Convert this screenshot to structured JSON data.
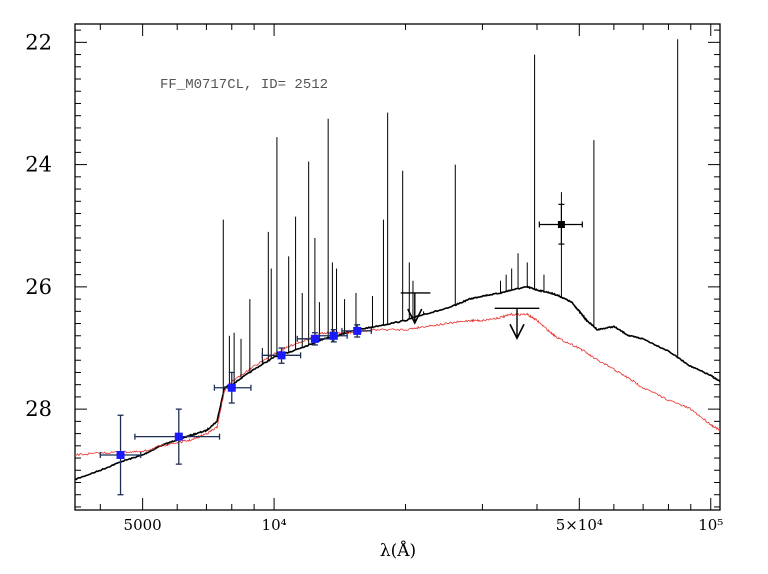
{
  "chart_data": {
    "type": "line",
    "annotation": "FF_M0717CL, ID= 2512",
    "xlabel": "λ(Å)",
    "ylabel": "",
    "xscale": "log",
    "xlim": [
      3500,
      105000
    ],
    "ylim": [
      29.65,
      21.7
    ],
    "grid": false,
    "x_ticks": [
      {
        "value": 5000,
        "label": "5000"
      },
      {
        "value": 10000,
        "label": "10⁴"
      },
      {
        "value": 50000,
        "label": "5×10⁴"
      },
      {
        "value": 100000,
        "label": "10⁵"
      }
    ],
    "y_ticks": [
      {
        "value": 22,
        "label": "22"
      },
      {
        "value": 24,
        "label": "24"
      },
      {
        "value": 26,
        "label": "26"
      },
      {
        "value": 28,
        "label": "28"
      }
    ],
    "colors": {
      "black_model": "#000000",
      "red_model": "#e8312d",
      "points": "#1a1aff",
      "errorbars": "#1c2f57"
    },
    "series": [
      {
        "color": "black",
        "x": [
          3500,
          4000,
          4500,
          5000,
          5500,
          6000,
          6500,
          7000,
          7400,
          7700,
          8000,
          9000,
          10000,
          11000,
          12000,
          13000,
          14000,
          15000,
          17000,
          20000,
          22000,
          25000,
          28000,
          30000,
          33000,
          35000,
          38000,
          40000,
          43000,
          45000,
          48000,
          50000,
          52000,
          55000,
          60000,
          65000,
          70000,
          80000,
          90000,
          100000,
          105000
        ],
        "y": [
          29.15,
          29.0,
          28.85,
          28.75,
          28.6,
          28.5,
          28.42,
          28.35,
          28.2,
          27.65,
          27.6,
          27.35,
          27.15,
          27.05,
          26.95,
          26.85,
          26.8,
          26.72,
          26.65,
          26.55,
          26.45,
          26.35,
          26.2,
          26.15,
          26.1,
          26.05,
          26.0,
          26.05,
          26.1,
          26.15,
          26.25,
          26.4,
          26.55,
          26.7,
          26.65,
          26.8,
          26.85,
          27.05,
          27.3,
          27.45,
          27.55
        ]
      },
      {
        "color": "red",
        "x": [
          3500,
          4000,
          4500,
          5000,
          5500,
          6000,
          6500,
          7000,
          7400,
          7700,
          8000,
          9000,
          10000,
          11000,
          12000,
          13000,
          14000,
          15000,
          17000,
          20000,
          22000,
          25000,
          28000,
          30000,
          33000,
          35000,
          38000,
          40000,
          43000,
          45000,
          50000,
          55000,
          60000,
          65000,
          70000,
          80000,
          90000,
          100000,
          105000
        ],
        "y": [
          28.75,
          28.72,
          28.7,
          28.7,
          28.6,
          28.55,
          28.5,
          28.4,
          28.3,
          27.7,
          27.55,
          27.3,
          27.1,
          26.95,
          26.85,
          26.75,
          26.75,
          26.75,
          26.7,
          26.7,
          26.65,
          26.6,
          26.55,
          26.55,
          26.5,
          26.45,
          26.45,
          26.55,
          26.75,
          26.85,
          27.0,
          27.2,
          27.35,
          27.5,
          27.65,
          27.85,
          28.0,
          28.25,
          28.35
        ]
      }
    ],
    "emission_lines": [
      {
        "x": 7650,
        "top": 24.9
      },
      {
        "x": 7900,
        "top": 26.8
      },
      {
        "x": 8100,
        "top": 26.75
      },
      {
        "x": 8400,
        "top": 26.85
      },
      {
        "x": 8800,
        "top": 26.2
      },
      {
        "x": 9400,
        "top": 27.0
      },
      {
        "x": 9700,
        "top": 25.1
      },
      {
        "x": 9850,
        "top": 25.7
      },
      {
        "x": 10150,
        "top": 23.55
      },
      {
        "x": 10800,
        "top": 25.5
      },
      {
        "x": 11200,
        "top": 24.85
      },
      {
        "x": 11600,
        "top": 26.1
      },
      {
        "x": 12000,
        "top": 23.95
      },
      {
        "x": 12400,
        "top": 25.2
      },
      {
        "x": 12700,
        "top": 26.25
      },
      {
        "x": 13300,
        "top": 23.25
      },
      {
        "x": 13600,
        "top": 25.6
      },
      {
        "x": 13900,
        "top": 25.7
      },
      {
        "x": 14500,
        "top": 26.2
      },
      {
        "x": 15400,
        "top": 26.1
      },
      {
        "x": 16800,
        "top": 26.15
      },
      {
        "x": 17800,
        "top": 24.9
      },
      {
        "x": 18200,
        "top": 23.15
      },
      {
        "x": 19700,
        "top": 24.1
      },
      {
        "x": 20400,
        "top": 25.6
      },
      {
        "x": 20800,
        "top": 25.9
      },
      {
        "x": 22000,
        "top": 26.4
      },
      {
        "x": 26000,
        "top": 24.0
      },
      {
        "x": 33000,
        "top": 25.9
      },
      {
        "x": 34000,
        "top": 25.8
      },
      {
        "x": 35000,
        "top": 25.7
      },
      {
        "x": 36200,
        "top": 25.45
      },
      {
        "x": 38000,
        "top": 25.6
      },
      {
        "x": 39500,
        "top": 22.2
      },
      {
        "x": 41500,
        "top": 25.8
      },
      {
        "x": 45500,
        "top": 24.45
      },
      {
        "x": 54000,
        "top": 23.6
      },
      {
        "x": 84000,
        "top": 21.95
      }
    ],
    "detections": [
      {
        "x": 4450,
        "y": 28.75,
        "xerr": [
          4000,
          4950
        ],
        "yerr": [
          28.1,
          29.4
        ]
      },
      {
        "x": 6050,
        "y": 28.45,
        "xerr": [
          4800,
          7500
        ],
        "yerr": [
          28.0,
          28.9
        ]
      },
      {
        "x": 8000,
        "y": 27.65,
        "xerr": [
          7300,
          8850
        ],
        "yerr": [
          27.4,
          27.9
        ]
      },
      {
        "x": 10400,
        "y": 27.12,
        "xerr": [
          9400,
          11500
        ],
        "yerr": [
          27.0,
          27.25
        ]
      },
      {
        "x": 12400,
        "y": 26.85,
        "xerr": [
          11300,
          13600
        ],
        "yerr": [
          26.75,
          26.95
        ]
      },
      {
        "x": 13700,
        "y": 26.8,
        "xerr": [
          12700,
          14700
        ],
        "yerr": [
          26.7,
          26.9
        ]
      },
      {
        "x": 15500,
        "y": 26.72,
        "xerr": [
          14300,
          16700
        ],
        "yerr": [
          26.62,
          26.82
        ]
      }
    ],
    "irac_point": {
      "x": 45500,
      "y": 24.98,
      "xerr": [
        40500,
        50800
      ],
      "yerr": [
        24.65,
        25.3
      ]
    },
    "upper_limits": [
      {
        "x": 21000,
        "y": 26.1,
        "xerr": [
          19500,
          22800
        ]
      },
      {
        "x": 36000,
        "y": 26.35,
        "xerr": [
          32000,
          40500
        ]
      }
    ]
  }
}
